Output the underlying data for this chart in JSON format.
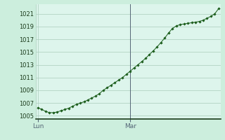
{
  "bg_color": "#cceedd",
  "plot_bg_color": "#ddf5ec",
  "grid_color": "#aaccbb",
  "line_color": "#1a5c1a",
  "marker_color": "#1a5c1a",
  "vline_color": "#556677",
  "label_color": "#1a3a1a",
  "bottom_spine_color": "#1a3a1a",
  "ylim": [
    1004.5,
    1022.5
  ],
  "yticks": [
    1005,
    1007,
    1009,
    1011,
    1013,
    1015,
    1017,
    1019,
    1021
  ],
  "xtick_labels": [
    "Lun",
    "Mar"
  ],
  "xtick_positions": [
    0,
    24
  ],
  "vline_x": 24,
  "data_y": [
    1006.3,
    1006.0,
    1005.7,
    1005.5,
    1005.5,
    1005.6,
    1005.8,
    1006.0,
    1006.2,
    1006.5,
    1006.8,
    1007.0,
    1007.2,
    1007.5,
    1007.8,
    1008.1,
    1008.5,
    1009.0,
    1009.4,
    1009.8,
    1010.2,
    1010.6,
    1011.0,
    1011.5,
    1012.0,
    1012.5,
    1013.0,
    1013.5,
    1014.0,
    1014.6,
    1015.2,
    1015.8,
    1016.5,
    1017.2,
    1018.0,
    1018.7,
    1019.1,
    1019.3,
    1019.4,
    1019.5,
    1019.6,
    1019.7,
    1019.8,
    1020.0,
    1020.3,
    1020.6,
    1021.0,
    1021.8
  ],
  "font_size": 6.5,
  "tick_font_size": 6.0
}
